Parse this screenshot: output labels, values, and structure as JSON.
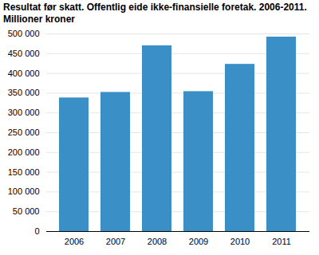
{
  "chart_data": {
    "type": "bar",
    "title": "Resultat før skatt. Offentlig eide ikke-finansielle foretak. 2006-2011.",
    "subtitle": "Millioner kroner",
    "categories": [
      "2006",
      "2007",
      "2008",
      "2009",
      "2010",
      "2011"
    ],
    "values": [
      338000,
      352000,
      470000,
      354000,
      423000,
      492000
    ],
    "color": "#3a8fc7",
    "ylim": [
      0,
      500000
    ],
    "yticks": [
      0,
      {
        "value": 50000,
        "label": "50 000"
      },
      {
        "value": 100000,
        "label": "100 000"
      },
      {
        "value": 150000,
        "label": "150 000"
      },
      {
        "value": 200000,
        "label": "200 000"
      },
      {
        "value": 250000,
        "label": "250 000"
      },
      {
        "value": 300000,
        "label": "300 000"
      },
      {
        "value": 350000,
        "label": "350 000"
      },
      {
        "value": 400000,
        "label": "400 000"
      },
      {
        "value": 450000,
        "label": "450 000"
      },
      {
        "value": 500000,
        "label": "500 000"
      }
    ],
    "grid": true
  }
}
